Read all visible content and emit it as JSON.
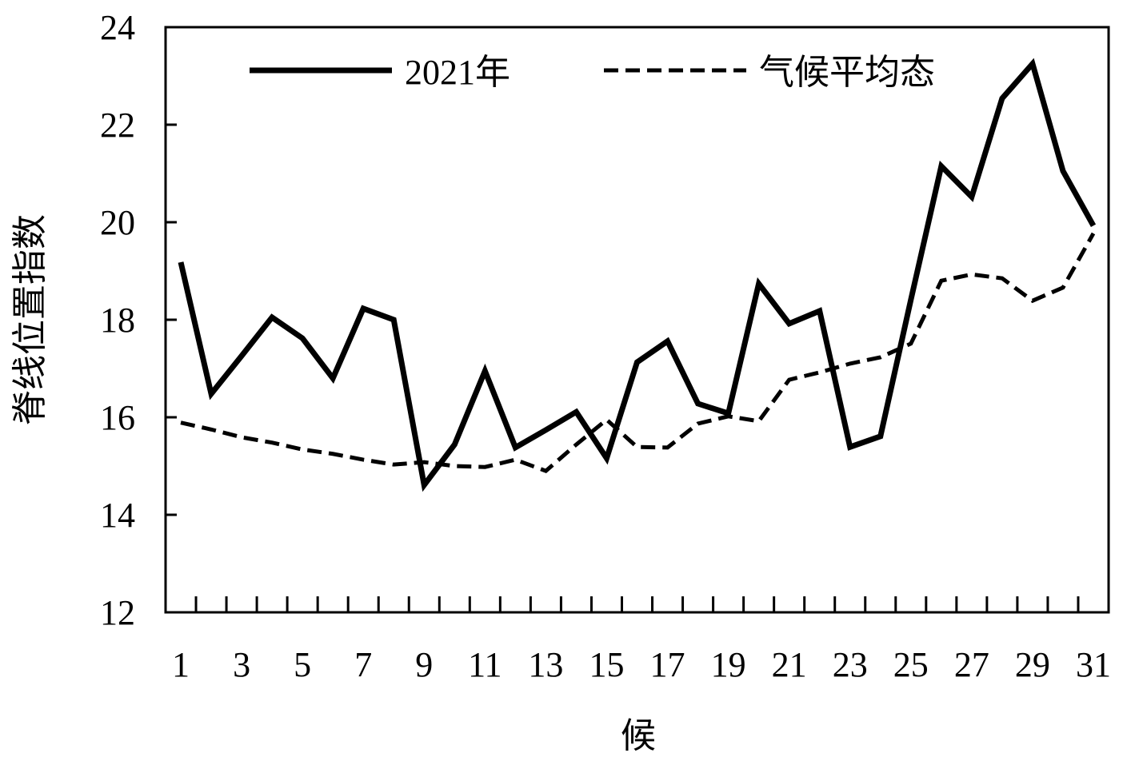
{
  "chart_data": {
    "type": "line",
    "x_label": "候",
    "y_label": "脊线位置指数",
    "x": [
      1,
      2,
      3,
      4,
      5,
      6,
      7,
      8,
      9,
      10,
      11,
      12,
      13,
      14,
      15,
      16,
      17,
      18,
      19,
      20,
      21,
      22,
      23,
      24,
      25,
      26,
      27,
      28,
      29,
      30,
      31
    ],
    "xlim": [
      0.5,
      31.5
    ],
    "xticks": [
      1,
      3,
      5,
      7,
      9,
      11,
      13,
      15,
      17,
      19,
      21,
      23,
      25,
      27,
      29,
      31
    ],
    "ylim": [
      12,
      24
    ],
    "yticks": [
      12,
      14,
      16,
      18,
      20,
      22,
      24
    ],
    "legend": "top",
    "series": [
      {
        "name": "2021年",
        "color": "#000000",
        "dash": "solid",
        "values": [
          19.18,
          16.48,
          17.26,
          18.05,
          17.62,
          16.8,
          18.23,
          18.0,
          14.61,
          15.44,
          16.95,
          15.38,
          15.74,
          16.11,
          15.16,
          17.13,
          17.56,
          16.28,
          16.08,
          18.74,
          17.92,
          18.18,
          15.39,
          15.61,
          18.41,
          21.15,
          20.52,
          22.54,
          23.25,
          21.05,
          19.93
        ]
      },
      {
        "name": "气候平均态",
        "color": "#000000",
        "dash": "dashed",
        "values": [
          15.89,
          15.75,
          15.59,
          15.48,
          15.34,
          15.25,
          15.13,
          15.03,
          15.08,
          15.0,
          14.98,
          15.13,
          14.9,
          15.44,
          15.95,
          15.39,
          15.38,
          15.87,
          16.02,
          15.92,
          16.77,
          16.92,
          17.1,
          17.23,
          17.51,
          18.8,
          18.93,
          18.85,
          18.39,
          18.66,
          19.77
        ]
      }
    ]
  }
}
